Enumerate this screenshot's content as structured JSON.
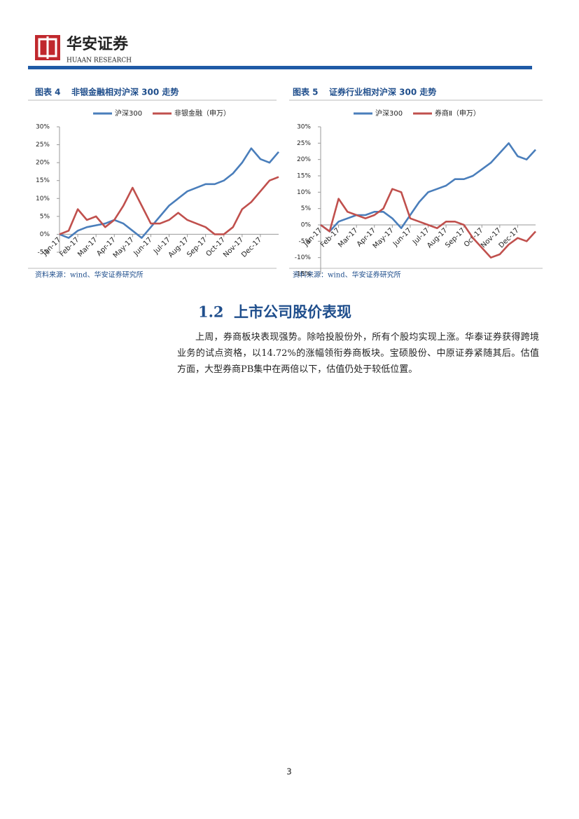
{
  "header": {
    "brand": "华安证券",
    "brand_en": "HUAAN RESEARCH"
  },
  "chart_data": [
    {
      "type": "line",
      "label": "图表 4",
      "title": "非银金融相对沪深 300 走势",
      "source": "资料来源：wind、华安证券研究所",
      "x": [
        0,
        0.5,
        1,
        1.5,
        2,
        2.5,
        3,
        3.5,
        4,
        4.5,
        5,
        5.5,
        6,
        6.5,
        7,
        7.5,
        8,
        8.5,
        9,
        9.5,
        10,
        10.5,
        11,
        11.5,
        12
      ],
      "series": [
        {
          "name": "沪深300",
          "color": "#4a7ebb",
          "values": [
            0,
            -1,
            1,
            2,
            2.5,
            3,
            4,
            3,
            1,
            -1,
            2,
            5,
            8,
            10,
            12,
            13,
            14,
            14,
            15,
            17,
            20,
            24,
            21,
            20,
            23
          ]
        },
        {
          "name": "非银金融（申万）",
          "color": "#c0504d",
          "values": [
            0,
            1,
            7,
            4,
            5,
            2,
            4,
            8,
            13,
            8,
            3,
            3,
            4,
            6,
            4,
            3,
            2,
            0,
            0,
            2,
            7,
            9,
            12,
            15,
            16
          ]
        }
      ],
      "xlim": [
        0,
        12
      ],
      "xticks": [
        {
          "value": 0,
          "label": "Jan-17"
        },
        {
          "value": 1,
          "label": "Feb-17"
        },
        {
          "value": 2,
          "label": "Mar-17"
        },
        {
          "value": 3,
          "label": "Apr-17"
        },
        {
          "value": 4,
          "label": "May-17"
        },
        {
          "value": 5,
          "label": "Jun-17"
        },
        {
          "value": 6,
          "label": "Jul-17"
        },
        {
          "value": 7,
          "label": "Aug-17"
        },
        {
          "value": 8,
          "label": "Sep-17"
        },
        {
          "value": 9,
          "label": "Oct-17"
        },
        {
          "value": 10,
          "label": "Nov-17"
        },
        {
          "value": 11,
          "label": "Dec-17"
        }
      ],
      "ylim": [
        -5,
        30
      ],
      "yticks": [
        {
          "value": -5,
          "label": "-5%"
        },
        {
          "value": 0,
          "label": "0%"
        },
        {
          "value": 5,
          "label": "5%"
        },
        {
          "value": 10,
          "label": "10%"
        },
        {
          "value": 15,
          "label": "15%"
        },
        {
          "value": 20,
          "label": "20%"
        },
        {
          "value": 25,
          "label": "25%"
        },
        {
          "value": 30,
          "label": "30%"
        }
      ],
      "legend": "top"
    },
    {
      "type": "line",
      "label": "图表 5",
      "title": "证券行业相对沪深 300 走势",
      "source": "资料来源：wind、华安证券研究所",
      "x": [
        0,
        0.5,
        1,
        1.5,
        2,
        2.5,
        3,
        3.5,
        4,
        4.5,
        5,
        5.5,
        6,
        6.5,
        7,
        7.5,
        8,
        8.5,
        9,
        9.5,
        10,
        10.5,
        11,
        11.5,
        12
      ],
      "series": [
        {
          "name": "沪深300",
          "color": "#4a7ebb",
          "values": [
            0,
            -2,
            1,
            2,
            3,
            3,
            4,
            4,
            2,
            -1,
            3,
            7,
            10,
            11,
            12,
            14,
            14,
            15,
            17,
            19,
            22,
            25,
            21,
            20,
            23
          ]
        },
        {
          "name": "券商Ⅱ（申万）",
          "color": "#c0504d",
          "values": [
            0,
            -2,
            8,
            4,
            3,
            2,
            3,
            5,
            11,
            10,
            2,
            1,
            0,
            -1,
            1,
            1,
            0,
            -4,
            -7,
            -10,
            -9,
            -6,
            -4,
            -5,
            -2
          ]
        }
      ],
      "xlim": [
        0,
        12
      ],
      "xticks": [
        {
          "value": 0,
          "label": "Jan-17"
        },
        {
          "value": 1,
          "label": "Feb-17"
        },
        {
          "value": 2,
          "label": "Mar-17"
        },
        {
          "value": 3,
          "label": "Apr-17"
        },
        {
          "value": 4,
          "label": "May-17"
        },
        {
          "value": 5,
          "label": "Jun-17"
        },
        {
          "value": 6,
          "label": "Jul-17"
        },
        {
          "value": 7,
          "label": "Aug-17"
        },
        {
          "value": 8,
          "label": "Sep-17"
        },
        {
          "value": 9,
          "label": "Oct-17"
        },
        {
          "value": 10,
          "label": "Nov-17"
        },
        {
          "value": 11,
          "label": "Dec-17"
        }
      ],
      "ylim": [
        -15,
        30
      ],
      "yticks": [
        {
          "value": -15,
          "label": "-15%"
        },
        {
          "value": -10,
          "label": "-10%"
        },
        {
          "value": -5,
          "label": "-5%"
        },
        {
          "value": 0,
          "label": "0%"
        },
        {
          "value": 5,
          "label": "5%"
        },
        {
          "value": 10,
          "label": "10%"
        },
        {
          "value": 15,
          "label": "15%"
        },
        {
          "value": 20,
          "label": "20%"
        },
        {
          "value": 25,
          "label": "25%"
        },
        {
          "value": 30,
          "label": "30%"
        }
      ],
      "legend": "top"
    }
  ],
  "section": {
    "number": "1.2",
    "title": "上市公司股价表现"
  },
  "paragraph": "上周，券商板块表现强势。除哈投股份外，所有个股均实现上涨。华泰证券获得跨境业务的试点资格，以14.72%的涨幅领衔券商板块。宝硕股份、中原证券紧随其后。估值方面，大型券商PB集中在两倍以下，估值仍处于较低位置。",
  "page_number": "3"
}
